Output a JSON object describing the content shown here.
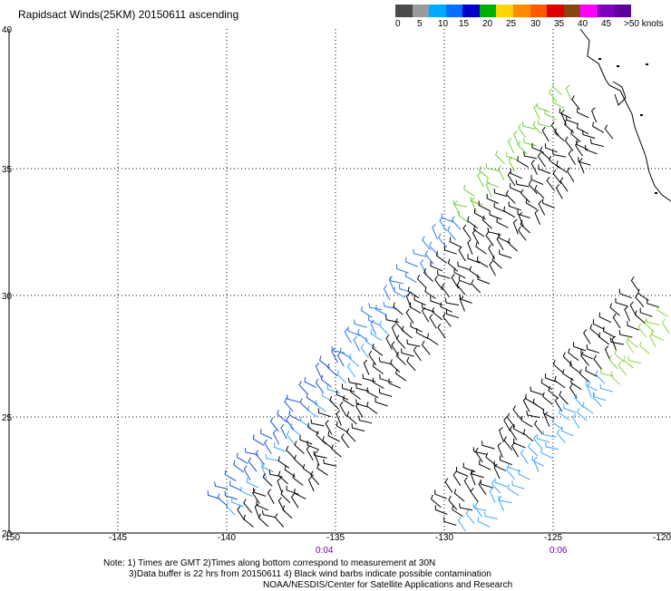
{
  "title": "Rapidsact Winds(25KM) 20150611 ascending",
  "legend": {
    "colors": [
      "#4a4a4a",
      "#9a9a9a",
      "#00aaff",
      "#0070ff",
      "#0000c8",
      "#00b000",
      "#ffd400",
      "#ff8c00",
      "#ff5a00",
      "#e00000",
      "#8b4513",
      "#ff00ff",
      "#8000c0",
      "#6000a0"
    ],
    "labels": [
      "0",
      "5",
      "10",
      "15",
      "20",
      "25",
      "30",
      "35",
      "40",
      "45",
      ">50 knots"
    ]
  },
  "map": {
    "lon_ticks": [
      "-150",
      "-145",
      "-140",
      "-135",
      "-130",
      "-125",
      "-120"
    ],
    "lat_ticks": [
      "40",
      "35",
      "30",
      "25",
      "20"
    ]
  },
  "time_labels": [
    "0:04",
    "0:06"
  ],
  "note": {
    "line1": "Note: 1) Times are GMT 2)Times along bottom correspond to measurement at 30N",
    "line2": "3)Data buffer is 22 hrs from 20150611 4) Black wind barbs indicate possible contamination",
    "line3": "NOAA/NESDIS/Center for Satellite Applications and Research"
  },
  "colors": {
    "contaminated": "#000000",
    "swath_blue": "#1a4fd6",
    "swath_light": "#3aa6ff",
    "land": "#000000"
  }
}
